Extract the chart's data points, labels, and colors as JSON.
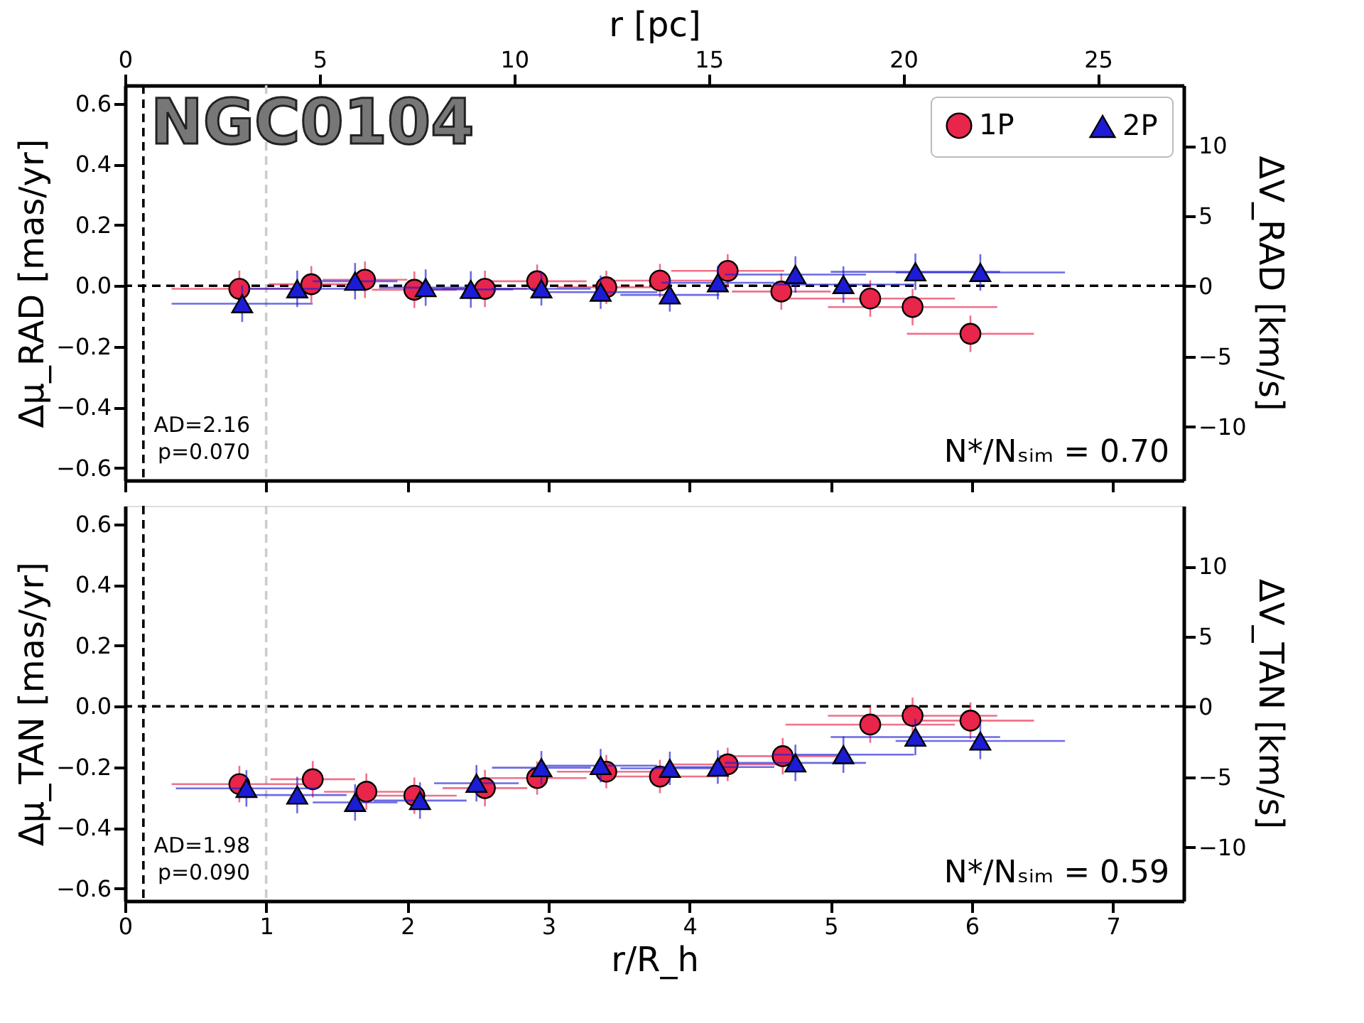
{
  "chart_data": [
    {
      "type": "scatter",
      "x2label": "r [pc]",
      "ylabel": "Δμ_RAD [mas/yr]",
      "y2label": "ΔV_RAD [km/s]",
      "xlim": [
        0,
        7.5
      ],
      "xticks": [
        0,
        1,
        2,
        3,
        4,
        5,
        6,
        7
      ],
      "tick_labels": "y",
      "x2lim": [
        0,
        27.2
      ],
      "x2ticks": [
        0,
        5,
        10,
        15,
        20,
        25
      ],
      "ylim": [
        -0.64,
        0.66
      ],
      "yticks": [
        -0.6,
        -0.4,
        -0.2,
        {
          "value": 0,
          "label": "0.0"
        },
        0.2,
        0.4,
        0.6
      ],
      "y2lim": [
        -13.8,
        14.3
      ],
      "y2ticks": [
        -10,
        -5,
        0,
        5,
        10
      ],
      "legend": "top right",
      "grid": false,
      "annotations": [
        "NGC0104",
        "AD=2.16\np=0.070",
        "N*/Nₛᵢₘ = 0.70"
      ],
      "ref_lines": [
        {
          "axis": "y",
          "value": 0,
          "color": "#000000",
          "line_style": "dashed"
        },
        {
          "axis": "x",
          "value": 0.13,
          "color": "#000000",
          "line_style": "dashed"
        },
        {
          "axis": "x",
          "value": 1,
          "color": "#cccccc",
          "line_style": "dashed"
        }
      ],
      "series": [
        {
          "name": "1P",
          "color": "#e8254a",
          "marker": "circle",
          "x": [
            0.81,
            1.32,
            1.7,
            2.05,
            2.55,
            2.92,
            3.41,
            3.79,
            4.27,
            4.65,
            5.28,
            5.58,
            5.99
          ],
          "values": [
            -0.01,
            0.005,
            0.02,
            -0.013,
            -0.01,
            0.015,
            -0.005,
            0.017,
            0.049,
            -0.019,
            -0.042,
            -0.07,
            -0.158
          ],
          "errors": [
            0.06,
            0.06,
            0.06,
            0.06,
            0.06,
            0.055,
            0.055,
            0.055,
            0.055,
            0.06,
            0.06,
            0.06,
            0.06
          ],
          "xerrors": [
            0.48,
            0.3,
            0.3,
            0.3,
            0.3,
            0.35,
            0.35,
            0.4,
            0.4,
            0.35,
            0.6,
            0.6,
            0.45
          ]
        },
        {
          "name": "2P",
          "color": "#1c1cd6",
          "marker": "triangle",
          "x": [
            0.83,
            1.22,
            1.63,
            2.13,
            2.45,
            2.95,
            3.37,
            3.86,
            4.2,
            4.75,
            5.09,
            5.6,
            6.06
          ],
          "values": [
            -0.059,
            -0.01,
            0.015,
            -0.006,
            -0.012,
            -0.01,
            -0.021,
            -0.03,
            0.01,
            0.037,
            0.004,
            0.046,
            0.044
          ],
          "errors": [
            0.06,
            0.06,
            0.06,
            0.06,
            0.06,
            0.055,
            0.055,
            0.055,
            0.055,
            0.06,
            0.06,
            0.06,
            0.06
          ],
          "xerrors": [
            0.5,
            0.35,
            0.3,
            0.33,
            0.3,
            0.35,
            0.4,
            0.35,
            0.4,
            0.5,
            0.5,
            0.6,
            0.6
          ]
        }
      ]
    },
    {
      "type": "scatter",
      "xlabel": "r/R_h",
      "ylabel": "Δμ_TAN [mas/yr]",
      "y2label": "ΔV_TAN [km/s]",
      "xlim": [
        0,
        7.5
      ],
      "xticks": [
        0,
        1,
        2,
        3,
        4,
        5,
        6,
        7
      ],
      "ylim": [
        -0.64,
        0.66
      ],
      "yticks": [
        -0.6,
        -0.4,
        -0.2,
        {
          "value": 0,
          "label": "0.0"
        },
        0.2,
        0.4,
        0.6
      ],
      "y2lim": [
        -13.8,
        14.3
      ],
      "y2ticks": [
        -10,
        -5,
        0,
        5,
        10
      ],
      "grid": false,
      "annotations": [
        "AD=1.98\np=0.090",
        "N*/Nₛᵢₘ = 0.59"
      ],
      "ref_lines": [
        {
          "axis": "y",
          "value": 0,
          "color": "#000000",
          "line_style": "dashed"
        },
        {
          "axis": "x",
          "value": 0.13,
          "color": "#000000",
          "line_style": "dashed"
        },
        {
          "axis": "x",
          "value": 1,
          "color": "#cccccc",
          "line_style": "dashed"
        }
      ],
      "series": [
        {
          "color": "#e8254a",
          "marker": "circle",
          "x": [
            0.81,
            1.33,
            1.71,
            2.05,
            2.55,
            2.92,
            3.41,
            3.79,
            4.27,
            4.66,
            5.28,
            5.58,
            5.99
          ],
          "values": [
            -0.256,
            -0.24,
            -0.281,
            -0.294,
            -0.269,
            -0.236,
            -0.215,
            -0.231,
            -0.191,
            -0.164,
            -0.06,
            -0.031,
            -0.047
          ],
          "errors": [
            0.06,
            0.06,
            0.06,
            0.06,
            0.06,
            0.055,
            0.055,
            0.055,
            0.055,
            0.06,
            0.06,
            0.06,
            0.06
          ],
          "xerrors": [
            0.48,
            0.3,
            0.3,
            0.3,
            0.3,
            0.35,
            0.35,
            0.4,
            0.4,
            0.45,
            0.6,
            0.6,
            0.45
          ]
        },
        {
          "color": "#1c1cd6",
          "marker": "triangle",
          "x": [
            0.86,
            1.22,
            1.63,
            2.09,
            2.49,
            2.95,
            3.37,
            3.86,
            4.2,
            4.75,
            5.09,
            5.6,
            6.06
          ],
          "values": [
            -0.27,
            -0.292,
            -0.316,
            -0.31,
            -0.253,
            -0.202,
            -0.195,
            -0.204,
            -0.2,
            -0.186,
            -0.159,
            -0.101,
            -0.114
          ],
          "errors": [
            0.06,
            0.06,
            0.06,
            0.06,
            0.06,
            0.055,
            0.055,
            0.055,
            0.055,
            0.06,
            0.06,
            0.06,
            0.06
          ],
          "xerrors": [
            0.5,
            0.35,
            0.3,
            0.33,
            0.3,
            0.35,
            0.4,
            0.35,
            0.4,
            0.5,
            0.5,
            0.6,
            0.6
          ]
        }
      ]
    }
  ]
}
